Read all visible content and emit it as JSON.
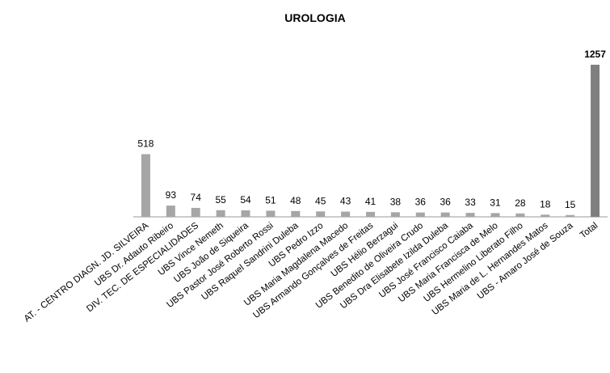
{
  "chart_data": {
    "type": "bar",
    "title": "UROLOGIA",
    "categories": [
      "AT. - CENTRO DIAGN. JD. SILVEIRA",
      "UBS Dr. Adauto Ribeiro",
      "DIV. TEC. DE ESPECIALIDADES",
      "UBS Vince Nemeth",
      "UBS João de Siqueira",
      "UBS Pastor José Roberto Rossi",
      "UBS Raquel Sandrini Duleba",
      "UBS Pedro Izzo",
      "UBS Maria Magdalena Macedo",
      "UBS Armando Gonçalves de Freitas",
      "UBS Hélio Berzagui",
      "UBS Benedito de Oliveira Crudo",
      "UBS Dra Elisabete Izilda Duleba",
      "UBS José Francisco Caiaba",
      "UBS Maria Francisca de Melo",
      "UBS Hermelino Liberato Filho",
      "UBS Maria de L. Hernandes Matos",
      "UBS - Amaro José de Souza",
      "Total"
    ],
    "values": [
      518,
      93,
      74,
      55,
      54,
      51,
      48,
      45,
      43,
      41,
      38,
      36,
      36,
      33,
      31,
      28,
      18,
      15,
      1257
    ],
    "colors": [
      "#a6a6a6",
      "#a6a6a6",
      "#a6a6a6",
      "#a6a6a6",
      "#a6a6a6",
      "#a6a6a6",
      "#a6a6a6",
      "#a6a6a6",
      "#a6a6a6",
      "#a6a6a6",
      "#a6a6a6",
      "#a6a6a6",
      "#a6a6a6",
      "#a6a6a6",
      "#a6a6a6",
      "#a6a6a6",
      "#a6a6a6",
      "#a6a6a6",
      "#7f7f7f"
    ]
  }
}
